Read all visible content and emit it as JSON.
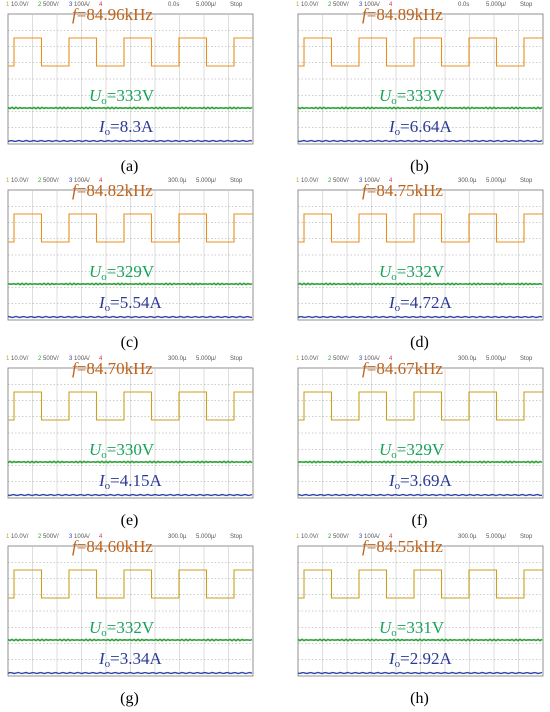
{
  "panels": [
    {
      "caption": "(a)",
      "frequency": "84.96kHz",
      "voltage": "333V",
      "current": "8.3A",
      "status": {
        "ch1": "10.0V/",
        "ch2": "500V/",
        "ch3": "100A/",
        "ch4": "4",
        "offset": "0.0s",
        "timebase": "5.000µ/",
        "mode": "Stop"
      },
      "voltage_trace_color": "#e8901e"
    },
    {
      "caption": "(b)",
      "frequency": "84.89kHz",
      "voltage": "333V",
      "current": "6.64A",
      "status": {
        "ch1": "10.0V/",
        "ch2": "500V/",
        "ch3": "100A/",
        "ch4": "4",
        "offset": "0.0s",
        "timebase": "5.000µ/",
        "mode": "Stop"
      },
      "voltage_trace_color": "#e8901e"
    },
    {
      "caption": "(c)",
      "frequency": "84.82kHz",
      "voltage": "329V",
      "current": "5.54A",
      "status": {
        "ch1": "10.0V/",
        "ch2": "500V/",
        "ch3": "100A/",
        "ch4": "4",
        "offset": "300.0µ",
        "timebase": "5.000µ/",
        "mode": "Stop"
      },
      "voltage_trace_color": "#e8901e"
    },
    {
      "caption": "(d)",
      "frequency": "84.75kHz",
      "voltage": "332V",
      "current": "4.72A",
      "status": {
        "ch1": "10.0V/",
        "ch2": "500V/",
        "ch3": "100A/",
        "ch4": "4",
        "offset": "300.0µ",
        "timebase": "5.000µ/",
        "mode": "Stop"
      },
      "voltage_trace_color": "#e8901e"
    },
    {
      "caption": "(e)",
      "frequency": "84.70kHz",
      "voltage": "330V",
      "current": "4.15A",
      "status": {
        "ch1": "10.0V/",
        "ch2": "500V/",
        "ch3": "100A/",
        "ch4": "4",
        "offset": "300.0µ",
        "timebase": "5.000µ/",
        "mode": "Stop"
      },
      "voltage_trace_color": "#c8a21c"
    },
    {
      "caption": "(f)",
      "frequency": "84.67kHz",
      "voltage": "329V",
      "current": "3.69A",
      "status": {
        "ch1": "10.0V/",
        "ch2": "500V/",
        "ch3": "100A/",
        "ch4": "4",
        "offset": "300.0µ",
        "timebase": "5.000µ/",
        "mode": "Stop"
      },
      "voltage_trace_color": "#c8a21c"
    },
    {
      "caption": "(g)",
      "frequency": "84.60kHz",
      "voltage": "332V",
      "current": "3.34A",
      "status": {
        "ch1": "10.0V/",
        "ch2": "500V/",
        "ch3": "100A/",
        "ch4": "4",
        "offset": "300.0µ",
        "timebase": "5.000µ/",
        "mode": "Stop"
      },
      "voltage_trace_color": "#c8a21c"
    },
    {
      "caption": "(h)",
      "frequency": "84.55kHz",
      "voltage": "331V",
      "current": "2.92A",
      "status": {
        "ch1": "10.0V/",
        "ch2": "500V/",
        "ch3": "100A/",
        "ch4": "4",
        "offset": "300.0µ",
        "timebase": "5.000µ/",
        "mode": "Stop"
      },
      "voltage_trace_color": "#c8a21c"
    }
  ],
  "symbols": {
    "f": "f",
    "U": "U",
    "I": "I",
    "sub": "o",
    "eq": "="
  },
  "trace_colors": {
    "grid": "#c8c8c8",
    "dc_voltage": "#2aa334",
    "current": "#3347a8"
  }
}
